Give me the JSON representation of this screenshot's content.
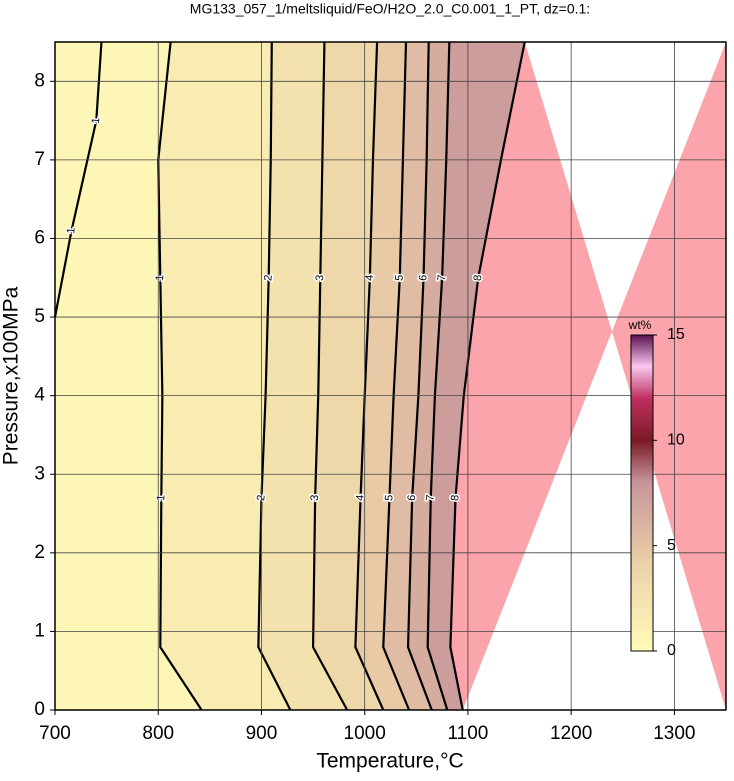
{
  "chart_data": {
    "type": "contour",
    "title": "MG133_057_1/meltsliquid/FeO/H2O_2.0_C0.001_1_PT, dz=0.1:",
    "x_label": "Temperature,°C",
    "y_label": "Pressure,x100MPa",
    "xlim": [
      700,
      1350
    ],
    "ylim": [
      0,
      8.5
    ],
    "xticks": [
      700,
      800,
      900,
      1000,
      1100,
      1200,
      1300
    ],
    "yticks": [
      0,
      1,
      2,
      3,
      4,
      5,
      6,
      7,
      8
    ],
    "grid": true,
    "above_color": "#fca4ab",
    "colorbar": {
      "label": "wt%",
      "clim": [
        0,
        15
      ],
      "ticks": [
        0,
        5,
        10,
        15
      ],
      "colormap": [
        {
          "value": 0,
          "color": "#fffbb8"
        },
        {
          "value": 4,
          "color": "#ecd3a8"
        },
        {
          "value": 8,
          "color": "#c8959a"
        },
        {
          "value": 10,
          "color": "#7a1a26"
        },
        {
          "value": 12,
          "color": "#c03060"
        },
        {
          "value": 13.5,
          "color": "#f8c8f0"
        },
        {
          "value": 15,
          "color": "#5a1050"
        }
      ]
    },
    "contours": [
      {
        "level": 1,
        "x": [
          812,
          800,
          802,
          804,
          803,
          802,
          842
        ],
        "y": [
          8.5,
          7,
          5.5,
          4,
          2.7,
          0.8,
          0
        ]
      },
      {
        "level": 2,
        "x": [
          910,
          909,
          907,
          904,
          900,
          897,
          928
        ],
        "y": [
          8.5,
          7,
          5.5,
          4,
          2.7,
          0.8,
          0
        ]
      },
      {
        "level": 3,
        "x": [
          961,
          959,
          957,
          955,
          952,
          950,
          983
        ],
        "y": [
          8.5,
          7,
          5.5,
          4,
          2.7,
          0.8,
          0
        ]
      },
      {
        "level": 4,
        "x": [
          1012,
          1008,
          1005,
          1000,
          996,
          991,
          1018
        ],
        "y": [
          8.5,
          7,
          5.5,
          4,
          2.7,
          0.8,
          0
        ]
      },
      {
        "level": 5,
        "x": [
          1040,
          1037,
          1034,
          1028,
          1024,
          1018,
          1043
        ],
        "y": [
          8.5,
          7,
          5.5,
          4,
          2.7,
          0.8,
          0
        ]
      },
      {
        "level": 6,
        "x": [
          1062,
          1060,
          1057,
          1052,
          1046,
          1042,
          1065
        ],
        "y": [
          8.5,
          7,
          5.5,
          4,
          2.7,
          0.8,
          0
        ]
      },
      {
        "level": 7,
        "x": [
          1082,
          1079,
          1075,
          1068,
          1064,
          1061,
          1080
        ],
        "y": [
          8.5,
          7,
          5.5,
          4,
          2.7,
          0.8,
          0
        ]
      },
      {
        "level": 8,
        "x": [
          1155,
          1132,
          1110,
          1096,
          1088,
          1083,
          1095
        ],
        "y": [
          8.5,
          7,
          5.5,
          4,
          2.7,
          0.8,
          0
        ]
      }
    ],
    "extra_contours": [
      {
        "level": 1,
        "x": [
          745,
          740,
          716,
          700
        ],
        "y": [
          8.5,
          7.5,
          6.1,
          5
        ]
      }
    ]
  }
}
